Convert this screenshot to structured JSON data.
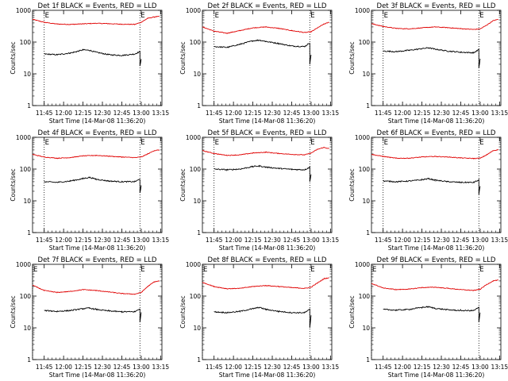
{
  "chart_data": [
    {
      "type": "line",
      "title": "Det 1f BLACK = Events, RED = LLD",
      "xlabel": "Start Time (14-Mar-08 11:36:20)",
      "ylabel": "Counts/sec",
      "x_ticks": [
        "11:45",
        "12:00",
        "12:15",
        "12:30",
        "12:45",
        "13:00",
        "13:15"
      ],
      "y_ticks": [
        "1",
        "10",
        "100",
        "1000"
      ],
      "yscale": "log",
      "ylim": [
        1,
        1000
      ],
      "markers": [
        {
          "label": "E",
          "x": "11:45"
        },
        {
          "label": "E",
          "x": "12:59"
        }
      ],
      "series": [
        {
          "color": "#e00000",
          "x": [
            "11:36",
            "11:45",
            "11:55",
            "12:05",
            "12:15",
            "12:25",
            "12:35",
            "12:45",
            "12:55",
            "13:00",
            "13:05",
            "13:10",
            "13:14"
          ],
          "y": [
            520,
            420,
            370,
            360,
            375,
            390,
            380,
            365,
            360,
            420,
            560,
            620,
            640
          ]
        },
        {
          "color": "#000000",
          "x": [
            "11:45",
            "11:55",
            "12:05",
            "12:10",
            "12:15",
            "12:20",
            "12:25",
            "12:35",
            "12:45",
            "12:55",
            "12:59",
            "12:59",
            "13:00"
          ],
          "y": [
            42,
            40,
            45,
            50,
            57,
            55,
            48,
            40,
            38,
            42,
            50,
            18,
            30
          ]
        }
      ]
    },
    {
      "type": "line",
      "title": "Det 2f BLACK = Events, RED = LLD",
      "xlabel": "Start Time (14-Mar-08 11:36:20)",
      "ylabel": "Counts/sec",
      "x_ticks": [
        "11:45",
        "12:00",
        "12:15",
        "12:30",
        "12:45",
        "13:00",
        "13:15"
      ],
      "y_ticks": [
        "1",
        "10",
        "100",
        "1000"
      ],
      "yscale": "log",
      "ylim": [
        1,
        1000
      ],
      "markers": [
        {
          "label": "E",
          "x": "11:45"
        },
        {
          "label": "E",
          "x": "12:59"
        }
      ],
      "series": [
        {
          "color": "#e00000",
          "x": [
            "11:36",
            "11:45",
            "11:55",
            "12:05",
            "12:15",
            "12:25",
            "12:35",
            "12:45",
            "12:55",
            "13:00",
            "13:05",
            "13:10",
            "13:14"
          ],
          "y": [
            300,
            220,
            190,
            230,
            280,
            300,
            270,
            230,
            200,
            210,
            280,
            370,
            420
          ]
        },
        {
          "color": "#000000",
          "x": [
            "11:45",
            "11:55",
            "12:05",
            "12:15",
            "12:20",
            "12:25",
            "12:35",
            "12:45",
            "12:55",
            "12:59",
            "12:59",
            "13:00"
          ],
          "y": [
            72,
            68,
            85,
            110,
            115,
            105,
            90,
            75,
            72,
            95,
            20,
            40
          ]
        }
      ]
    },
    {
      "type": "line",
      "title": "Det 3f BLACK = Events, RED = LLD",
      "xlabel": "Start Time (14-Mar-08 11:36:20)",
      "ylabel": "Counts/sec",
      "x_ticks": [
        "11:45",
        "12:00",
        "12:15",
        "12:30",
        "12:45",
        "13:00",
        "13:15"
      ],
      "y_ticks": [
        "1",
        "10",
        "100",
        "1000"
      ],
      "yscale": "log",
      "ylim": [
        1,
        1000
      ],
      "markers": [
        {
          "label": "E",
          "x": "11:45"
        },
        {
          "label": "E",
          "x": "12:59"
        }
      ],
      "series": [
        {
          "color": "#e00000",
          "x": [
            "11:36",
            "11:45",
            "11:55",
            "12:05",
            "12:15",
            "12:25",
            "12:35",
            "12:45",
            "12:55",
            "13:00",
            "13:05",
            "13:10",
            "13:14"
          ],
          "y": [
            380,
            310,
            270,
            260,
            280,
            300,
            285,
            265,
            250,
            260,
            340,
            470,
            520
          ]
        },
        {
          "color": "#000000",
          "x": [
            "11:45",
            "11:55",
            "12:05",
            "12:15",
            "12:20",
            "12:25",
            "12:35",
            "12:45",
            "12:55",
            "12:59",
            "12:59",
            "13:00"
          ],
          "y": [
            52,
            50,
            55,
            62,
            66,
            60,
            52,
            48,
            46,
            58,
            15,
            30
          ]
        }
      ]
    },
    {
      "type": "line",
      "title": "Det 4f BLACK = Events, RED = LLD",
      "xlabel": "Start Time (14-Mar-08 11:36:20)",
      "ylabel": "Counts/sec",
      "x_ticks": [
        "11:45",
        "12:00",
        "12:15",
        "12:30",
        "12:45",
        "13:00",
        "13:15"
      ],
      "y_ticks": [
        "1",
        "10",
        "100",
        "1000"
      ],
      "yscale": "log",
      "ylim": [
        1,
        1000
      ],
      "markers": [
        {
          "label": "E",
          "x": "11:45"
        },
        {
          "label": "E",
          "x": "12:59"
        }
      ],
      "series": [
        {
          "color": "#e00000",
          "x": [
            "11:36",
            "11:45",
            "11:55",
            "12:05",
            "12:15",
            "12:25",
            "12:35",
            "12:45",
            "12:55",
            "13:00",
            "13:05",
            "13:10",
            "13:14"
          ],
          "y": [
            290,
            240,
            220,
            230,
            260,
            270,
            255,
            240,
            230,
            240,
            300,
            380,
            400
          ]
        },
        {
          "color": "#000000",
          "x": [
            "11:45",
            "11:55",
            "12:05",
            "12:15",
            "12:20",
            "12:25",
            "12:35",
            "12:45",
            "12:55",
            "12:59",
            "12:59",
            "13:00"
          ],
          "y": [
            40,
            38,
            42,
            50,
            55,
            48,
            42,
            40,
            40,
            48,
            18,
            30
          ]
        }
      ]
    },
    {
      "type": "line",
      "title": "Det 5f BLACK = Events, RED = LLD",
      "xlabel": "Start Time (14-Mar-08 11:36:20)",
      "ylabel": "Counts/sec",
      "x_ticks": [
        "11:45",
        "12:00",
        "12:15",
        "12:30",
        "12:45",
        "13:00",
        "13:15"
      ],
      "y_ticks": [
        "1",
        "10",
        "100",
        "1000"
      ],
      "yscale": "log",
      "ylim": [
        1,
        1000
      ],
      "markers": [
        {
          "label": "E",
          "x": "11:45"
        },
        {
          "label": "E",
          "x": "12:59"
        }
      ],
      "series": [
        {
          "color": "#e00000",
          "x": [
            "11:36",
            "11:45",
            "11:55",
            "12:05",
            "12:15",
            "12:25",
            "12:35",
            "12:45",
            "12:55",
            "13:00",
            "13:05",
            "13:10",
            "13:14"
          ],
          "y": [
            380,
            310,
            270,
            280,
            320,
            340,
            310,
            290,
            280,
            320,
            420,
            480,
            440
          ]
        },
        {
          "color": "#000000",
          "x": [
            "11:45",
            "11:55",
            "12:05",
            "12:15",
            "12:20",
            "12:25",
            "12:35",
            "12:45",
            "12:55",
            "12:59",
            "12:59",
            "13:00"
          ],
          "y": [
            100,
            95,
            100,
            120,
            125,
            115,
            105,
            98,
            95,
            115,
            40,
            70
          ]
        }
      ]
    },
    {
      "type": "line",
      "title": "Det 6f BLACK = Events, RED = LLD",
      "xlabel": "Start Time (14-Mar-08 11:36:20)",
      "ylabel": "Counts/sec",
      "x_ticks": [
        "11:45",
        "12:00",
        "12:15",
        "12:30",
        "12:45",
        "13:00",
        "13:15"
      ],
      "y_ticks": [
        "1",
        "10",
        "100",
        "1000"
      ],
      "yscale": "log",
      "ylim": [
        1,
        1000
      ],
      "markers": [
        {
          "label": "E",
          "x": "11:45"
        },
        {
          "label": "E",
          "x": "12:59"
        }
      ],
      "series": [
        {
          "color": "#e00000",
          "x": [
            "11:36",
            "11:45",
            "11:55",
            "12:05",
            "12:15",
            "12:25",
            "12:35",
            "12:45",
            "12:55",
            "13:00",
            "13:05",
            "13:10",
            "13:14"
          ],
          "y": [
            290,
            250,
            220,
            220,
            240,
            250,
            240,
            225,
            215,
            220,
            280,
            380,
            410
          ]
        },
        {
          "color": "#000000",
          "x": [
            "11:45",
            "11:55",
            "12:05",
            "12:15",
            "12:20",
            "12:25",
            "12:35",
            "12:45",
            "12:55",
            "12:59",
            "12:59",
            "13:00"
          ],
          "y": [
            42,
            40,
            42,
            46,
            50,
            45,
            40,
            38,
            38,
            45,
            16,
            30
          ]
        }
      ]
    },
    {
      "type": "line",
      "title": "Det 7f BLACK = Events, RED = LLD",
      "xlabel": "Start Time (14-Mar-08 11:36:20)",
      "ylabel": "Counts/sec",
      "x_ticks": [
        "11:45",
        "12:00",
        "12:15",
        "12:30",
        "12:45",
        "13:00",
        "13:15"
      ],
      "y_ticks": [
        "1",
        "10",
        "100",
        "1000"
      ],
      "yscale": "log",
      "ylim": [
        1,
        1000
      ],
      "markers": [
        {
          "label": "E",
          "x": "11:36"
        },
        {
          "label": "E",
          "x": "12:59"
        }
      ],
      "series": [
        {
          "color": "#e00000",
          "x": [
            "11:36",
            "11:45",
            "11:55",
            "12:05",
            "12:15",
            "12:25",
            "12:35",
            "12:45",
            "12:55",
            "13:00",
            "13:05",
            "13:10",
            "13:14"
          ],
          "y": [
            220,
            150,
            130,
            140,
            160,
            150,
            135,
            120,
            115,
            130,
            200,
            280,
            300
          ]
        },
        {
          "color": "#000000",
          "x": [
            "11:45",
            "11:55",
            "12:05",
            "12:15",
            "12:20",
            "12:25",
            "12:35",
            "12:45",
            "12:55",
            "12:59",
            "12:59",
            "13:00"
          ],
          "y": [
            35,
            33,
            35,
            40,
            42,
            38,
            34,
            32,
            32,
            40,
            15,
            30
          ]
        }
      ]
    },
    {
      "type": "line",
      "title": "Det 8f BLACK = Events, RED = LLD",
      "xlabel": "Start Time (14-Mar-08 11:36:20)",
      "ylabel": "Counts/sec",
      "x_ticks": [
        "11:45",
        "12:00",
        "12:15",
        "12:30",
        "12:45",
        "13:00",
        "13:15"
      ],
      "y_ticks": [
        "1",
        "10",
        "100",
        "1000"
      ],
      "yscale": "log",
      "ylim": [
        1,
        1000
      ],
      "markers": [
        {
          "label": "E",
          "x": "11:36"
        },
        {
          "label": "E",
          "x": "12:59"
        }
      ],
      "series": [
        {
          "color": "#e00000",
          "x": [
            "11:36",
            "11:45",
            "11:55",
            "12:05",
            "12:15",
            "12:25",
            "12:35",
            "12:45",
            "12:55",
            "13:00",
            "13:05",
            "13:10",
            "13:14"
          ],
          "y": [
            270,
            200,
            170,
            175,
            200,
            215,
            200,
            185,
            175,
            190,
            260,
            350,
            380
          ]
        },
        {
          "color": "#000000",
          "x": [
            "11:45",
            "11:55",
            "12:05",
            "12:15",
            "12:20",
            "12:25",
            "12:35",
            "12:45",
            "12:55",
            "12:59",
            "12:59",
            "13:00"
          ],
          "y": [
            32,
            30,
            33,
            40,
            44,
            38,
            33,
            30,
            30,
            38,
            10,
            25
          ]
        }
      ]
    },
    {
      "type": "line",
      "title": "Det 9f BLACK = Events, RED = LLD",
      "xlabel": "Start Time (14-Mar-08 11:36:20)",
      "ylabel": "Counts/sec",
      "x_ticks": [
        "11:45",
        "12:00",
        "12:15",
        "12:30",
        "12:45",
        "13:00",
        "13:15"
      ],
      "y_ticks": [
        "1",
        "10",
        "100",
        "1000"
      ],
      "yscale": "log",
      "ylim": [
        1,
        1000
      ],
      "markers": [
        {
          "label": "E",
          "x": "11:36"
        },
        {
          "label": "E",
          "x": "12:59"
        }
      ],
      "series": [
        {
          "color": "#e00000",
          "x": [
            "11:36",
            "11:45",
            "11:55",
            "12:05",
            "12:15",
            "12:25",
            "12:35",
            "12:45",
            "12:55",
            "13:00",
            "13:05",
            "13:10",
            "13:14"
          ],
          "y": [
            250,
            180,
            160,
            165,
            185,
            190,
            175,
            160,
            150,
            165,
            230,
            300,
            320
          ]
        },
        {
          "color": "#000000",
          "x": [
            "11:45",
            "11:55",
            "12:05",
            "12:15",
            "12:20",
            "12:25",
            "12:35",
            "12:45",
            "12:55",
            "12:59",
            "12:59",
            "13:00"
          ],
          "y": [
            38,
            36,
            38,
            44,
            46,
            41,
            37,
            35,
            35,
            44,
            15,
            30
          ]
        }
      ]
    }
  ]
}
